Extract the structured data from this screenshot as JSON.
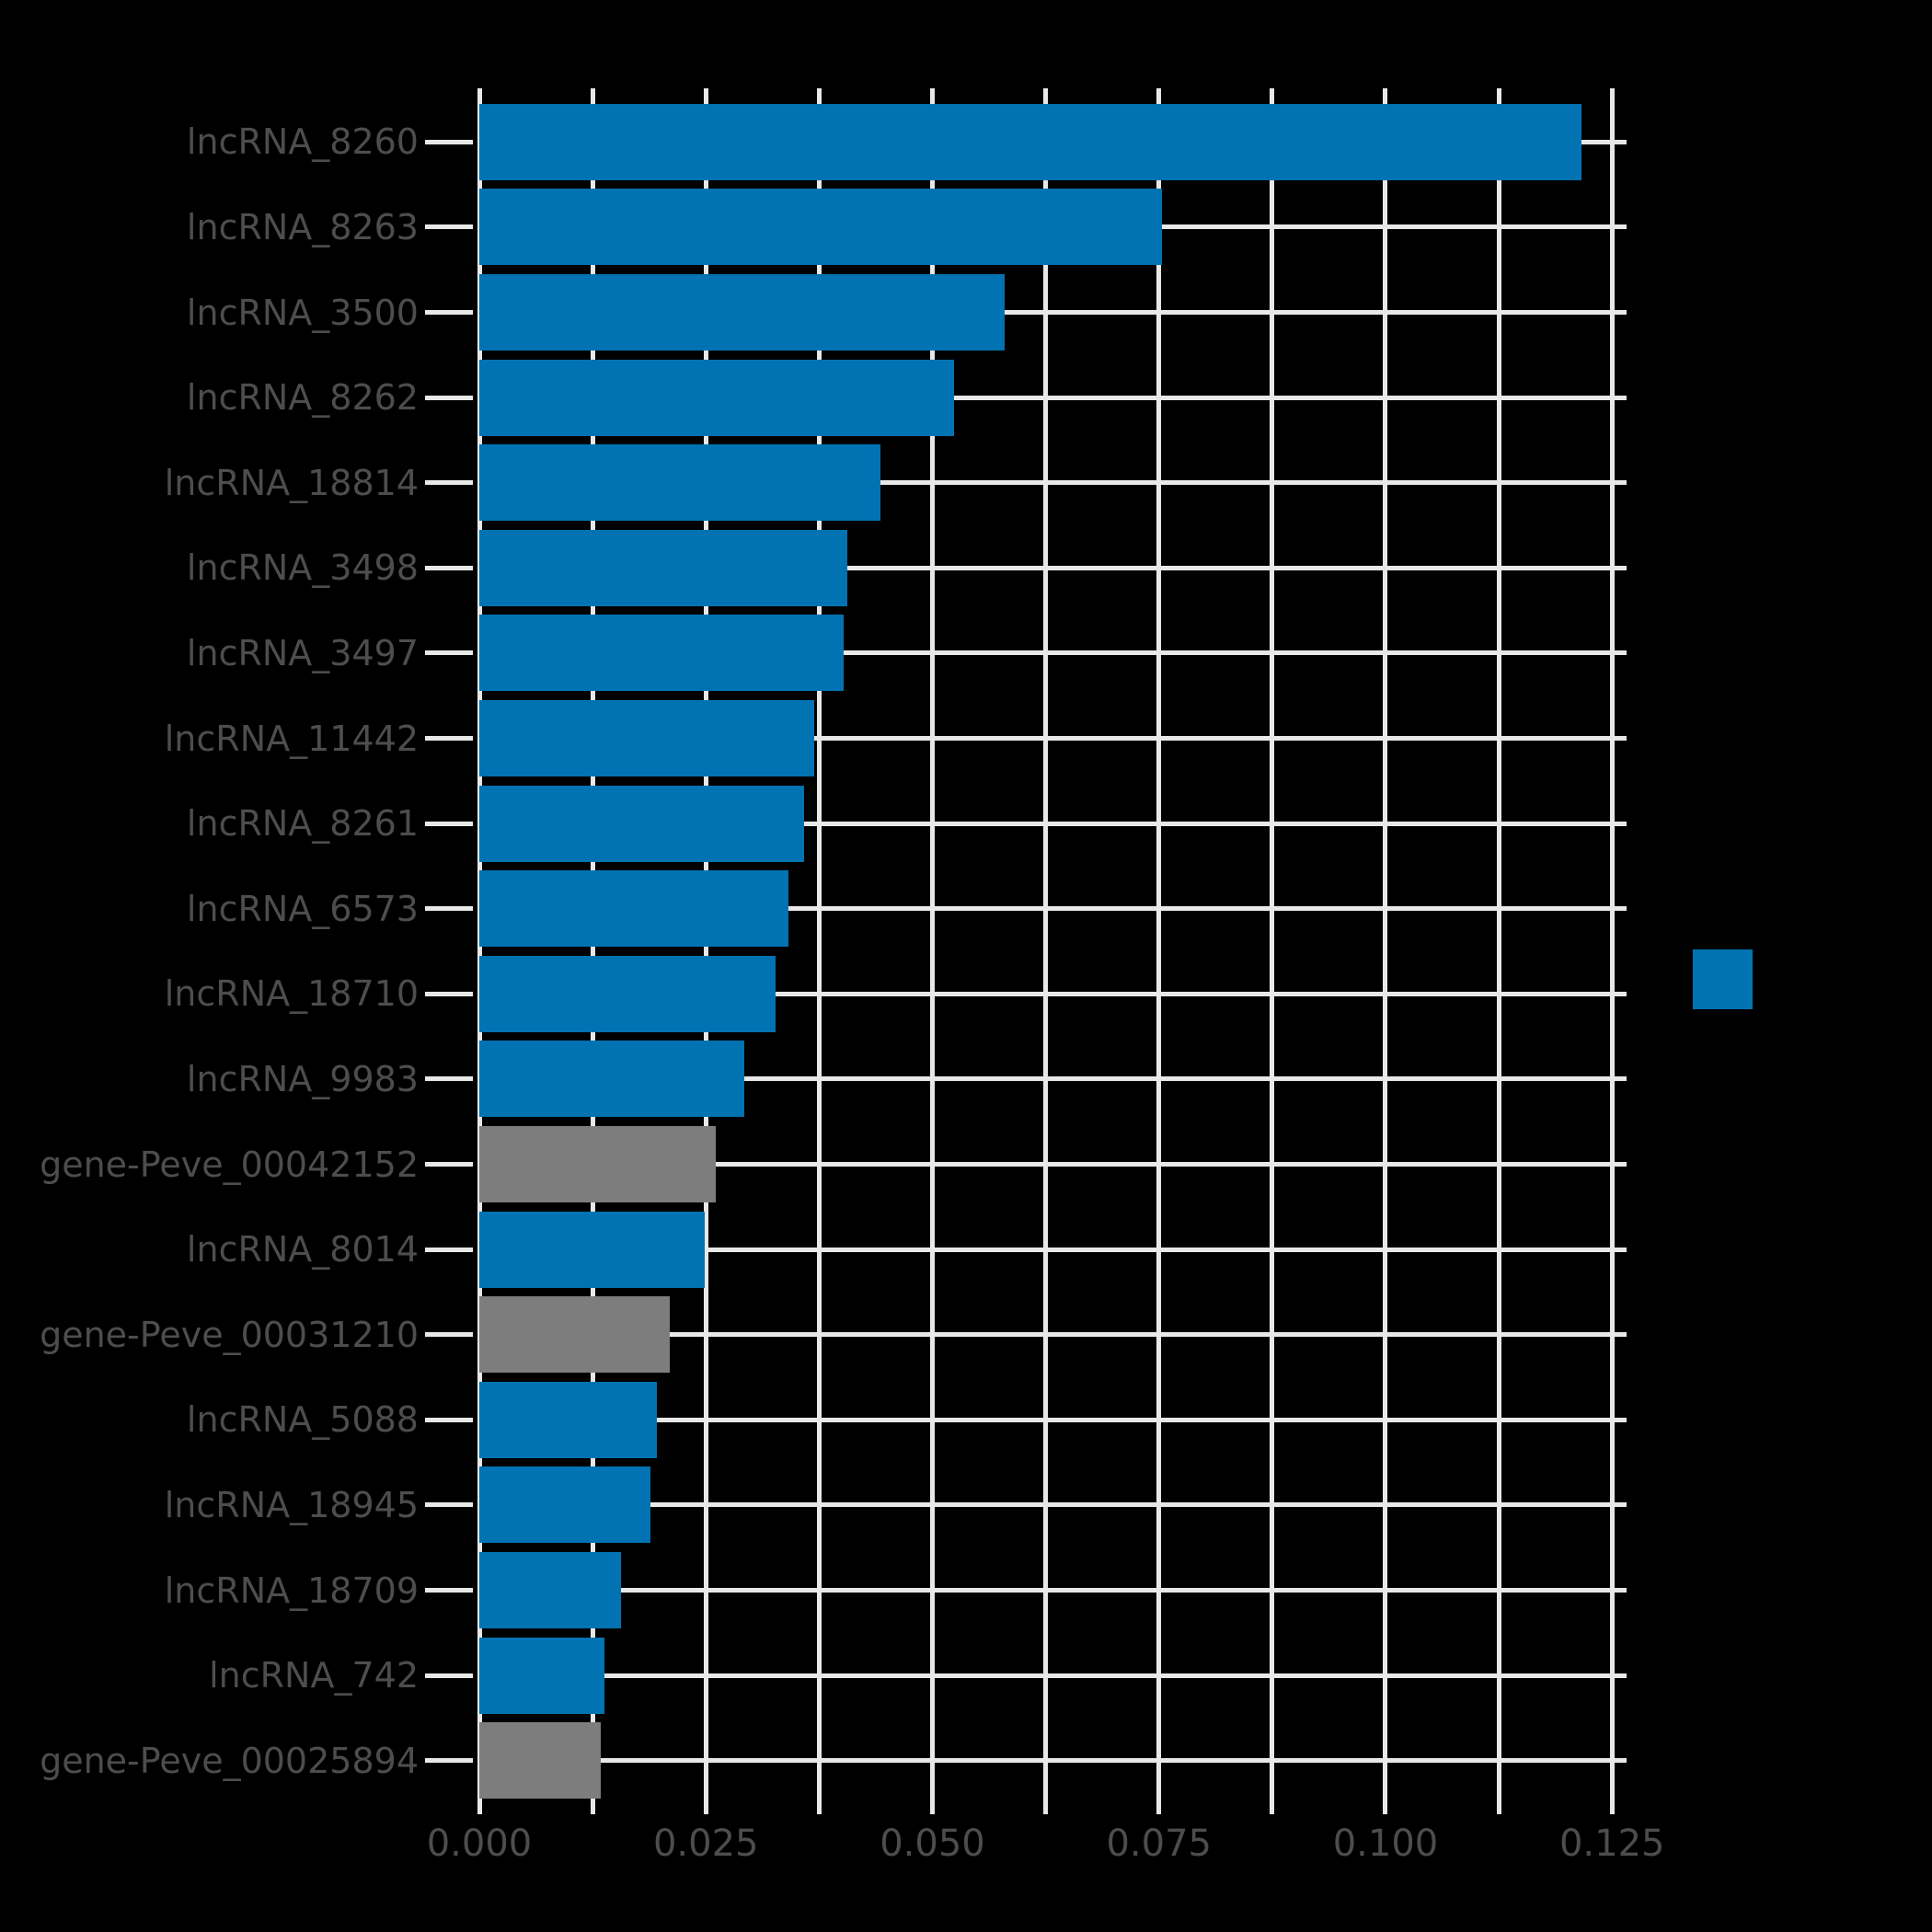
{
  "chart_data": {
    "type": "bar",
    "orientation": "horizontal",
    "title": "",
    "xlabel": "",
    "ylabel": "",
    "categories": [
      "lncRNA_8260",
      "lncRNA_8263",
      "lncRNA_3500",
      "lncRNA_8262",
      "lncRNA_18814",
      "lncRNA_3498",
      "lncRNA_3497",
      "lncRNA_11442",
      "lncRNA_8261",
      "lncRNA_6573",
      "lncRNA_18710",
      "lncRNA_9983",
      "gene-Peve_00042152",
      "lncRNA_8014",
      "gene-Peve_00031210",
      "lncRNA_5088",
      "lncRNA_18945",
      "lncRNA_18709",
      "lncRNA_742",
      "gene-Peve_00025894"
    ],
    "values": [
      0.1216,
      0.0753,
      0.058,
      0.0524,
      0.0443,
      0.0406,
      0.0402,
      0.037,
      0.0358,
      0.0341,
      0.0327,
      0.0292,
      0.0261,
      0.0249,
      0.021,
      0.0196,
      0.0189,
      0.0156,
      0.0138,
      0.0134
    ],
    "bar_types": [
      "lncRNA",
      "lncRNA",
      "lncRNA",
      "lncRNA",
      "lncRNA",
      "lncRNA",
      "lncRNA",
      "lncRNA",
      "lncRNA",
      "lncRNA",
      "lncRNA",
      "lncRNA",
      "gene",
      "lncRNA",
      "gene",
      "lncRNA",
      "lncRNA",
      "lncRNA",
      "lncRNA",
      "gene"
    ],
    "xlim": [
      0,
      0.1266
    ],
    "x_major_ticks": [
      0,
      0.025,
      0.05,
      0.075,
      0.1,
      0.125
    ],
    "x_major_tick_labels": [
      "0.000",
      "0.025",
      "0.050",
      "0.075",
      "0.100",
      "0.125"
    ],
    "x_minor_ticks": [
      0.0125,
      0.0375,
      0.0625,
      0.0875,
      0.1125
    ],
    "grid": true,
    "legend_position": "right"
  },
  "colors": {
    "background": "#000000",
    "bar_lncRNA": "#0173b2",
    "bar_gene": "#7d7d7d",
    "grid": "#e8e8e8",
    "label_text": "#4d4d4d",
    "legend_swatch": "#0173b2"
  }
}
